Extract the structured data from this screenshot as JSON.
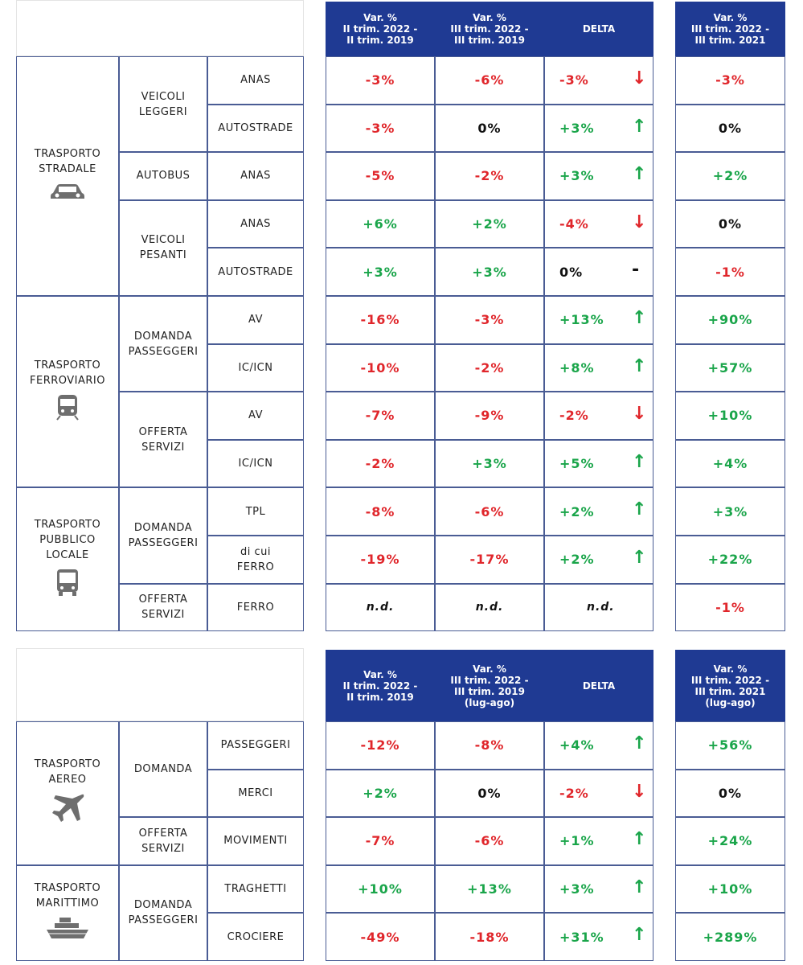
{
  "tables": [
    {
      "header": [
        [
          "Var. %",
          "II trim. 2022 -",
          "II trim. 2019"
        ],
        [
          "Var. %",
          "III trim. 2022 -",
          "III trim. 2019"
        ],
        [
          "DELTA"
        ],
        [
          "Var. %",
          "III trim. 2022 -",
          "III trim. 2021"
        ]
      ],
      "sections": [
        {
          "label": [
            "TRASPORTO",
            "STRADALE"
          ],
          "groups": [
            {
              "label": [
                "VEICOLI",
                "LEGGERI"
              ],
              "items": [
                {
                  "label": [
                    "ANAS"
                  ],
                  "values": [
                    "-3%",
                    "-6%",
                    "-3%"
                  ],
                  "arrow": "↓",
                  "last": "-3%"
                },
                {
                  "label": [
                    "AUTOSTRADE"
                  ],
                  "values": [
                    "-3%",
                    "0%",
                    "+3%"
                  ],
                  "arrow": "↑",
                  "last": "0%"
                }
              ]
            },
            {
              "label": [
                "AUTOBUS"
              ],
              "items": [
                {
                  "label": [
                    "ANAS"
                  ],
                  "values": [
                    "-5%",
                    "-2%",
                    "+3%"
                  ],
                  "arrow": "↑",
                  "last": "+2%"
                }
              ]
            },
            {
              "label": [
                "VEICOLI",
                "PESANTI"
              ],
              "items": [
                {
                  "label": [
                    "ANAS"
                  ],
                  "values": [
                    "+6%",
                    "+2%",
                    "-4%"
                  ],
                  "arrow": "↓",
                  "last": "0%"
                },
                {
                  "label": [
                    "AUTOSTRADE"
                  ],
                  "values": [
                    "+3%",
                    "+3%",
                    "0%"
                  ],
                  "arrow": "-",
                  "last": "-1%"
                }
              ]
            }
          ]
        },
        {
          "label": [
            "TRASPORTO",
            "FERROVIARIO"
          ],
          "groups": [
            {
              "label": [
                "DOMANDA",
                "PASSEGGERI"
              ],
              "items": [
                {
                  "label": [
                    "AV"
                  ],
                  "values": [
                    "-16%",
                    "-3%",
                    "+13%"
                  ],
                  "arrow": "↑",
                  "last": "+90%"
                },
                {
                  "label": [
                    "IC/ICN"
                  ],
                  "values": [
                    "-10%",
                    "-2%",
                    "+8%"
                  ],
                  "arrow": "↑",
                  "last": "+57%"
                }
              ]
            },
            {
              "label": [
                "OFFERTA",
                "SERVIZI"
              ],
              "items": [
                {
                  "label": [
                    "AV"
                  ],
                  "values": [
                    "-7%",
                    "-9%",
                    "-2%"
                  ],
                  "arrow": "↓",
                  "last": "+10%"
                },
                {
                  "label": [
                    "IC/ICN"
                  ],
                  "values": [
                    "-2%",
                    "+3%",
                    "+5%"
                  ],
                  "arrow": "↑",
                  "last": "+4%"
                }
              ]
            }
          ]
        },
        {
          "label": [
            "TRASPORTO",
            "PUBBLICO",
            "LOCALE"
          ],
          "groups": [
            {
              "label": [
                "DOMANDA",
                "PASSEGGERI"
              ],
              "items": [
                {
                  "label": [
                    "TPL"
                  ],
                  "values": [
                    "-8%",
                    "-6%",
                    "+2%"
                  ],
                  "arrow": "↑",
                  "last": "+3%"
                },
                {
                  "label": [
                    "di cui",
                    "FERRO"
                  ],
                  "values": [
                    "-19%",
                    "-17%",
                    "+2%"
                  ],
                  "arrow": "↑",
                  "last": "+22%"
                }
              ]
            },
            {
              "label": [
                "OFFERTA",
                "SERVIZI"
              ],
              "items": [
                {
                  "label": [
                    "FERRO"
                  ],
                  "values": [
                    "n.d.",
                    "n.d.",
                    "n.d."
                  ],
                  "last": "-1%"
                }
              ]
            }
          ]
        }
      ]
    },
    {
      "header": [
        [
          "Var. %",
          "II trim. 2022 -",
          "II trim. 2019"
        ],
        [
          "Var. %",
          "III trim. 2022 -",
          "III trim. 2019",
          "(lug-ago)"
        ],
        [
          "DELTA"
        ],
        [
          "Var. %",
          "III trim. 2022 -",
          "III trim. 2021",
          "(lug-ago)"
        ]
      ],
      "sections": [
        {
          "label": [
            "TRASPORTO",
            "AEREO"
          ],
          "groups": [
            {
              "label": [
                "DOMANDA"
              ],
              "items": [
                {
                  "label": [
                    "PASSEGGERI"
                  ],
                  "values": [
                    "-12%",
                    "-8%",
                    "+4%"
                  ],
                  "arrow": "↑",
                  "last": "+56%"
                },
                {
                  "label": [
                    "MERCI"
                  ],
                  "values": [
                    "+2%",
                    "0%",
                    "-2%"
                  ],
                  "arrow": "↓",
                  "last": "0%"
                }
              ]
            },
            {
              "label": [
                "OFFERTA",
                "SERVIZI"
              ],
              "items": [
                {
                  "label": [
                    "MOVIMENTI"
                  ],
                  "values": [
                    "-7%",
                    "-6%",
                    "+1%"
                  ],
                  "arrow": "↑",
                  "last": "+24%"
                }
              ]
            }
          ]
        },
        {
          "label": [
            "TRASPORTO",
            "MARITTIMO"
          ],
          "groups": [
            {
              "label": [
                "DOMANDA",
                "PASSEGGERI"
              ],
              "items": [
                {
                  "label": [
                    "TRAGHETTI"
                  ],
                  "values": [
                    "+10%",
                    "+13%",
                    "+3%"
                  ],
                  "arrow": "↑",
                  "last": "+10%"
                },
                {
                  "label": [
                    "CROCIERE"
                  ],
                  "values": [
                    "-49%",
                    "-18%",
                    "+31%"
                  ],
                  "arrow": "↑",
                  "last": "+289%"
                }
              ]
            }
          ]
        }
      ]
    }
  ]
}
